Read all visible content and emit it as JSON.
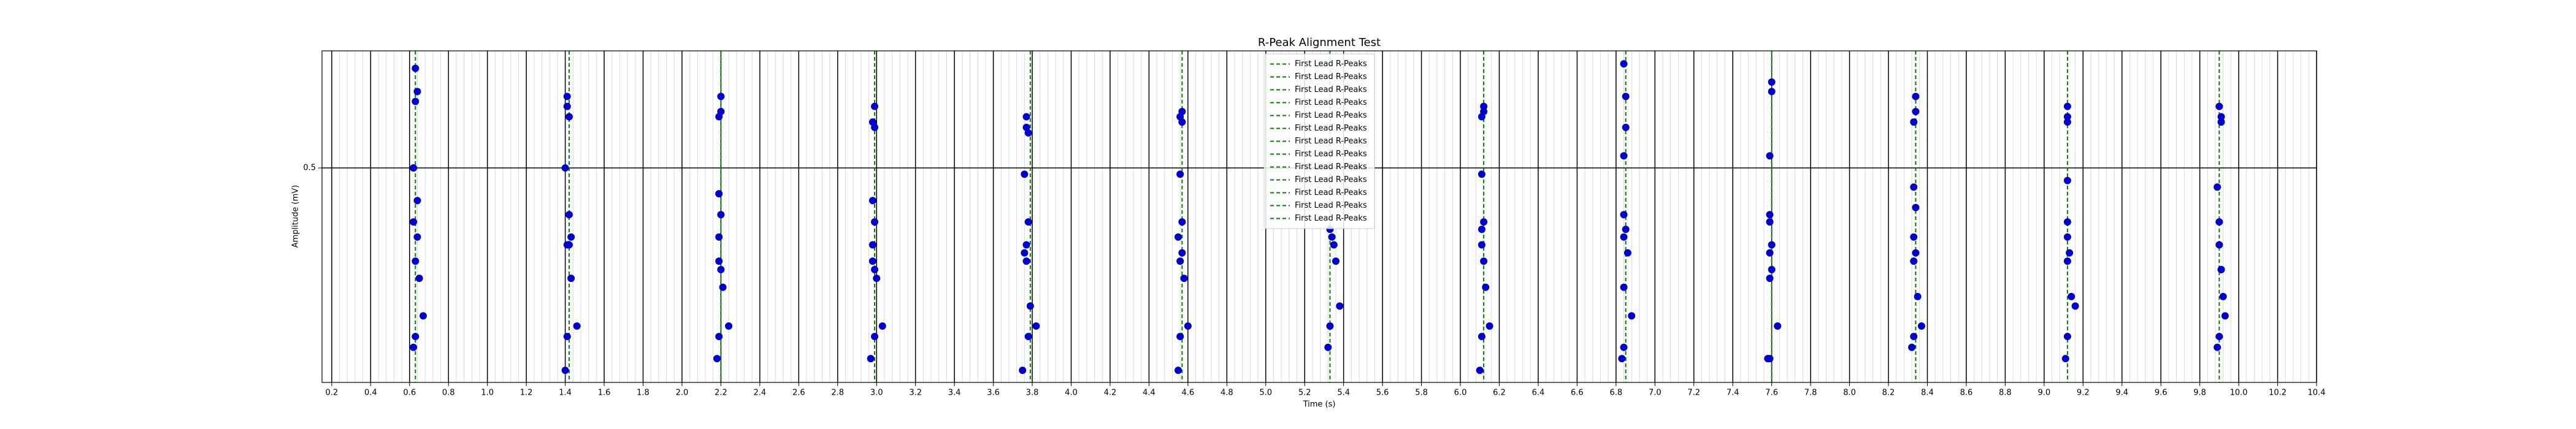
{
  "chart_data": {
    "type": "scatter",
    "title": "R-Peak Alignment Test",
    "xlabel": "Time (s)",
    "ylabel": "Amplitude (mV)",
    "xlim": [
      0.15,
      10.4
    ],
    "ylim": [
      0.25,
      0.73
    ],
    "yscale": "log",
    "grid": true,
    "legend_loc": "upper center",
    "xticks": [
      0.2,
      0.4,
      0.6,
      0.8,
      {
        "value": 1,
        "label": "1.0"
      },
      1.2,
      1.4,
      1.6,
      1.8,
      {
        "value": 2,
        "label": "2.0"
      },
      2.2,
      2.4,
      2.6,
      2.8,
      {
        "value": 3,
        "label": "3.0"
      },
      3.2,
      3.4,
      3.6,
      3.8,
      {
        "value": 4,
        "label": "4.0"
      },
      4.2,
      4.4,
      4.6,
      4.8,
      {
        "value": 5,
        "label": "5.0"
      },
      5.2,
      5.4,
      5.6,
      5.8,
      {
        "value": 6,
        "label": "6.0"
      },
      6.2,
      6.4,
      6.6,
      6.8,
      {
        "value": 7,
        "label": "7.0"
      },
      7.2,
      7.4,
      7.6,
      7.8,
      {
        "value": 8,
        "label": "8.0"
      },
      8.2,
      8.4,
      8.6,
      8.8,
      {
        "value": 9,
        "label": "9.0"
      },
      9.2,
      9.4,
      9.6,
      9.8,
      {
        "value": 10,
        "label": "10.0"
      },
      10.2,
      10.4
    ],
    "yticks": [
      0.5
    ],
    "vlines": [
      {
        "name": "First Lead R-Peaks",
        "color": "#008000",
        "x": 0.63
      },
      {
        "name": "First Lead R-Peaks",
        "color": "#008000",
        "x": 1.42
      },
      {
        "name": "First Lead R-Peaks",
        "color": "#008000",
        "x": 2.2
      },
      {
        "name": "First Lead R-Peaks",
        "color": "#008000",
        "x": 2.99
      },
      {
        "name": "First Lead R-Peaks",
        "color": "#008000",
        "x": 3.79
      },
      {
        "name": "First Lead R-Peaks",
        "color": "#008000",
        "x": 4.57
      },
      {
        "name": "First Lead R-Peaks",
        "color": "#008000",
        "x": 5.33
      },
      {
        "name": "First Lead R-Peaks",
        "color": "#008000",
        "x": 6.12
      },
      {
        "name": "First Lead R-Peaks",
        "color": "#008000",
        "x": 6.85
      },
      {
        "name": "First Lead R-Peaks",
        "color": "#008000",
        "x": 7.6
      },
      {
        "name": "First Lead R-Peaks",
        "color": "#008000",
        "x": 8.34
      },
      {
        "name": "First Lead R-Peaks",
        "color": "#008000",
        "x": 9.12
      },
      {
        "name": "First Lead R-Peaks",
        "color": "#008000",
        "x": 9.9
      }
    ],
    "series": [
      {
        "color": "#0000cc",
        "x": [
          0.63,
          0.64,
          0.63,
          0.62,
          0.64,
          0.62,
          0.64,
          0.63,
          0.65,
          0.67,
          0.63,
          0.62
        ],
        "y": [
          0.69,
          0.64,
          0.62,
          0.5,
          0.45,
          0.42,
          0.4,
          0.37,
          0.35,
          0.31,
          0.29,
          0.28
        ]
      },
      {
        "color": "#0000cc",
        "x": [
          1.41,
          1.41,
          1.42,
          1.4,
          1.42,
          1.43,
          1.41,
          1.42,
          1.43,
          1.46,
          1.41,
          1.4
        ],
        "y": [
          0.63,
          0.61,
          0.59,
          0.5,
          0.43,
          0.4,
          0.39,
          0.39,
          0.35,
          0.3,
          0.29,
          0.26
        ]
      },
      {
        "color": "#0000cc",
        "x": [
          2.2,
          2.2,
          2.19,
          2.19,
          2.2,
          2.19,
          2.19,
          2.2,
          2.21,
          2.24,
          2.19,
          2.18
        ],
        "y": [
          0.63,
          0.6,
          0.59,
          0.46,
          0.43,
          0.4,
          0.37,
          0.36,
          0.34,
          0.3,
          0.29,
          0.27
        ]
      },
      {
        "color": "#0000cc",
        "x": [
          2.99,
          2.98,
          2.99,
          2.98,
          2.99,
          2.98,
          2.98,
          2.99,
          3.0,
          3.03,
          2.99,
          2.97
        ],
        "y": [
          0.61,
          0.58,
          0.57,
          0.45,
          0.42,
          0.39,
          0.37,
          0.36,
          0.35,
          0.3,
          0.29,
          0.27
        ]
      },
      {
        "color": "#0000cc",
        "x": [
          3.77,
          3.77,
          3.78,
          3.76,
          3.78,
          3.77,
          3.76,
          3.77,
          3.79,
          3.82,
          3.78,
          3.75
        ],
        "y": [
          0.59,
          0.57,
          0.56,
          0.49,
          0.42,
          0.39,
          0.38,
          0.37,
          0.32,
          0.3,
          0.29,
          0.26
        ]
      },
      {
        "color": "#0000cc",
        "x": [
          4.57,
          4.56,
          4.57,
          4.56,
          4.57,
          4.55,
          4.57,
          4.56,
          4.58,
          4.6,
          4.56,
          4.55
        ],
        "y": [
          0.6,
          0.59,
          0.58,
          0.49,
          0.42,
          0.4,
          0.38,
          0.37,
          0.35,
          0.3,
          0.29,
          0.26
        ]
      },
      {
        "color": "#0000cc",
        "x": [
          5.33,
          5.34,
          5.35,
          5.36,
          5.38,
          5.33,
          5.32
        ],
        "y": [
          0.41,
          0.4,
          0.39,
          0.37,
          0.32,
          0.3,
          0.28
        ]
      },
      {
        "color": "#0000cc",
        "x": [
          6.12,
          6.12,
          6.11,
          6.11,
          6.12,
          6.11,
          6.11,
          6.12,
          6.13,
          6.15,
          6.11,
          6.1
        ],
        "y": [
          0.61,
          0.6,
          0.59,
          0.49,
          0.42,
          0.41,
          0.39,
          0.37,
          0.34,
          0.3,
          0.29,
          0.26
        ]
      },
      {
        "color": "#0000cc",
        "x": [
          6.84,
          6.85,
          6.85,
          6.84,
          6.84,
          6.85,
          6.84,
          6.86,
          6.84,
          6.88,
          6.84,
          6.83
        ],
        "y": [
          0.7,
          0.63,
          0.57,
          0.52,
          0.43,
          0.41,
          0.4,
          0.38,
          0.34,
          0.31,
          0.28,
          0.27
        ]
      },
      {
        "color": "#0000cc",
        "x": [
          7.6,
          7.6,
          7.59,
          7.59,
          7.59,
          7.6,
          7.59,
          7.6,
          7.59,
          7.63,
          7.59,
          7.58
        ],
        "y": [
          0.66,
          0.64,
          0.52,
          0.43,
          0.42,
          0.39,
          0.38,
          0.36,
          0.35,
          0.3,
          0.27,
          0.27
        ]
      },
      {
        "color": "#0000cc",
        "x": [
          8.34,
          8.34,
          8.33,
          8.33,
          8.34,
          8.33,
          8.34,
          8.33,
          8.35,
          8.37,
          8.33,
          8.32
        ],
        "y": [
          0.63,
          0.6,
          0.58,
          0.47,
          0.44,
          0.4,
          0.38,
          0.37,
          0.33,
          0.3,
          0.29,
          0.28
        ]
      },
      {
        "color": "#0000cc",
        "x": [
          9.12,
          9.12,
          9.12,
          9.12,
          9.12,
          9.12,
          9.13,
          9.12,
          9.14,
          9.16,
          9.12,
          9.11
        ],
        "y": [
          0.61,
          0.59,
          0.58,
          0.48,
          0.42,
          0.4,
          0.38,
          0.37,
          0.33,
          0.32,
          0.29,
          0.27
        ]
      },
      {
        "color": "#0000cc",
        "x": [
          9.9,
          9.91,
          9.91,
          9.89,
          9.9,
          9.9,
          9.91,
          9.91,
          9.92,
          9.93,
          9.9,
          9.89
        ],
        "y": [
          0.61,
          0.59,
          0.58,
          0.47,
          0.42,
          0.39,
          0.36,
          0.36,
          0.33,
          0.31,
          0.29,
          0.28
        ]
      }
    ]
  }
}
